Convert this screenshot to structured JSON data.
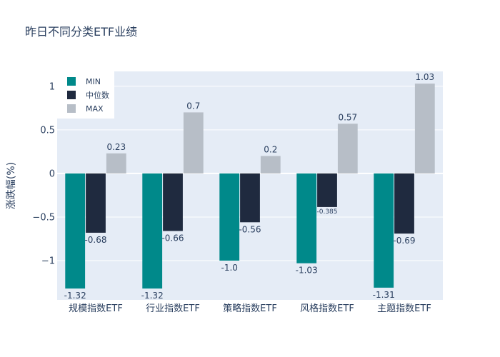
{
  "chart_data": {
    "type": "bar",
    "title": "昨日不同分类ETF业绩",
    "xlabel": "",
    "ylabel": "涨跌幅(%)",
    "ylim": [
      -1.45,
      1.17
    ],
    "yticks": [
      -1,
      -0.5,
      0,
      0.5,
      1
    ],
    "ytick_labels": [
      "−1",
      "−0.5",
      "0",
      "0.5",
      "1"
    ],
    "grid": true,
    "legend_position": "top-left",
    "categories": [
      "规模指数ETF",
      "行业指数ETF",
      "策略指数ETF",
      "风格指数ETF",
      "主题指数ETF"
    ],
    "series": [
      {
        "name": "MIN",
        "color": "#00898a",
        "values": [
          -1.32,
          -1.32,
          -1.0,
          -1.03,
          -1.31
        ],
        "labels": [
          "-1.32",
          "-1.32",
          "-1.0",
          "-1.03",
          "-1.31"
        ]
      },
      {
        "name": "中位数",
        "color": "#1f2a3f",
        "values": [
          -0.68,
          -0.66,
          -0.56,
          -0.385,
          -0.69
        ],
        "labels": [
          "-0.68",
          "-0.66",
          "-0.56",
          "-0.385",
          "-0.69"
        ]
      },
      {
        "name": "MAX",
        "color": "#b7bec7",
        "values": [
          0.23,
          0.7,
          0.2,
          0.57,
          1.03
        ],
        "labels": [
          "0.23",
          "0.7",
          "0.2",
          "0.57",
          "1.03"
        ]
      }
    ],
    "colors": {
      "plot_bg": "#e5ecf6",
      "grid": "#ffffff",
      "text": "#2a3f5f",
      "zero_line": "#ffffff"
    }
  }
}
